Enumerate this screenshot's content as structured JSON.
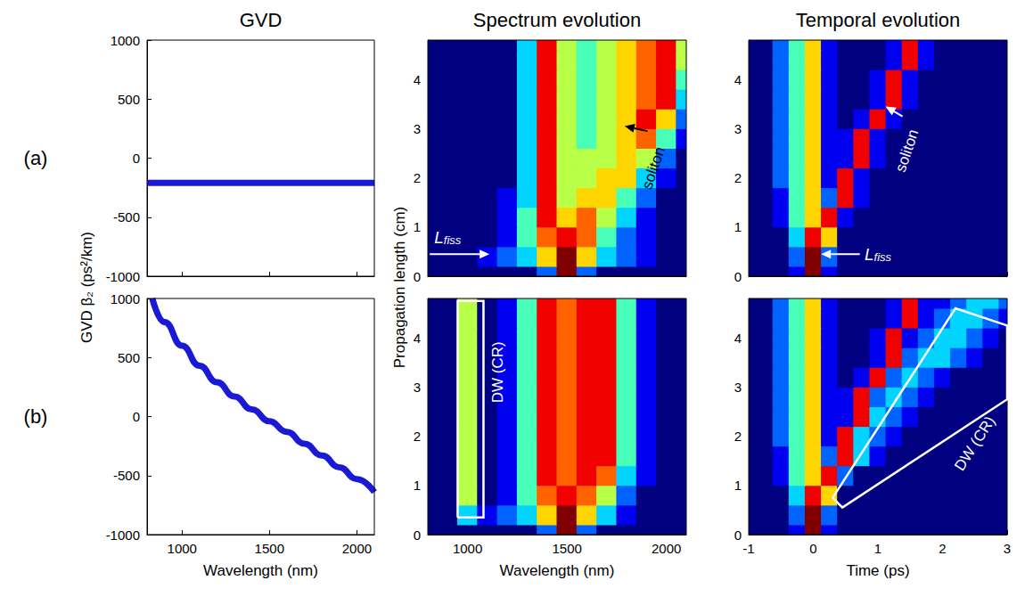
{
  "column_titles": [
    "GVD",
    "Spectrum evolution",
    "Temporal evolution"
  ],
  "row_labels": [
    "(a)",
    "(b)"
  ],
  "chart_data": [
    {
      "type": "line",
      "ylabel": "GVD β₂ (ps²/km)",
      "color": "#1a1ad6",
      "line_style": "solid",
      "x": [
        800,
        2100
      ],
      "values": [
        -210,
        -210
      ],
      "xlim": [
        800,
        2100
      ],
      "xticks": [
        1000,
        1500,
        2000
      ],
      "ylim": [
        -1000,
        1000
      ],
      "yticks": [
        -1000,
        -500,
        0,
        500,
        1000
      ],
      "tick_labels": "y"
    },
    {
      "type": "heatmap",
      "ylabel": "Propagation length (cm)",
      "x": [
        800,
        900,
        1000,
        1100,
        1200,
        1300,
        1400,
        1500,
        1600,
        1700,
        1800,
        1900,
        2000,
        2100
      ],
      "y": [
        0,
        0.4,
        0.8,
        1.2,
        1.6,
        2,
        2.4,
        2.8,
        3.2,
        3.6,
        4,
        4.4,
        4.8
      ],
      "z": [
        [
          0,
          0,
          0,
          0,
          0,
          0,
          2,
          9,
          2,
          0,
          0,
          0,
          0,
          0
        ],
        [
          0,
          0,
          0,
          1,
          2,
          3,
          6,
          9,
          6,
          3,
          2,
          1,
          0,
          0
        ],
        [
          0,
          0,
          0,
          0,
          1,
          4,
          7,
          8,
          7,
          4,
          2,
          1,
          0,
          0
        ],
        [
          0,
          0,
          0,
          0,
          1,
          4,
          8,
          6,
          7,
          5,
          3,
          1,
          0,
          0
        ],
        [
          0,
          0,
          0,
          0,
          1,
          3,
          8,
          5,
          6,
          6,
          4,
          2,
          0,
          0
        ],
        [
          0,
          0,
          0,
          0,
          0,
          3,
          8,
          5,
          5,
          6,
          6,
          3,
          1,
          0
        ],
        [
          0,
          0,
          0,
          0,
          0,
          3,
          8,
          5,
          5,
          5,
          6,
          5,
          2,
          0
        ],
        [
          0,
          0,
          0,
          0,
          0,
          3,
          8,
          5,
          4,
          5,
          6,
          7,
          4,
          1
        ],
        [
          0,
          0,
          0,
          0,
          0,
          3,
          8,
          5,
          4,
          5,
          6,
          8,
          6,
          2
        ],
        [
          0,
          0,
          0,
          0,
          0,
          3,
          8,
          5,
          4,
          5,
          6,
          7,
          8,
          3
        ],
        [
          0,
          0,
          0,
          0,
          0,
          3,
          8,
          5,
          4,
          5,
          6,
          7,
          8,
          4
        ],
        [
          0,
          0,
          0,
          0,
          0,
          3,
          8,
          5,
          4,
          5,
          6,
          7,
          8,
          5
        ],
        [
          0,
          0,
          0,
          0,
          0,
          3,
          8,
          5,
          4,
          5,
          6,
          7,
          8,
          5
        ]
      ],
      "zlim": [
        0,
        9
      ],
      "xlim": [
        800,
        2100
      ],
      "xticks": [
        1000,
        1500,
        2000
      ],
      "ylim": [
        0,
        4.8
      ],
      "yticks": [
        0,
        1,
        2,
        3,
        4
      ],
      "tick_labels": "y",
      "annotations": [
        {
          "text": "soliton",
          "x": 1935,
          "y": 2.2,
          "arrow_from": [
            1905,
            2.95
          ],
          "arrow_to": [
            1790,
            3.05
          ],
          "color": "#000000"
        },
        {
          "text": "L",
          "sub": "fiss",
          "x": 900,
          "y": 0.78,
          "arrow_from": [
            810,
            0.45
          ],
          "arrow_to": [
            1110,
            0.45
          ],
          "color": "#ffffff"
        }
      ]
    },
    {
      "type": "heatmap",
      "x": [
        -1,
        -0.75,
        -0.5,
        -0.25,
        0,
        0.25,
        0.5,
        0.75,
        1,
        1.25,
        1.5,
        1.75,
        2,
        2.25,
        2.5,
        2.75,
        3
      ],
      "y": [
        0,
        0.4,
        0.8,
        1.2,
        1.6,
        2,
        2.4,
        2.8,
        3.2,
        3.6,
        4,
        4.4,
        4.8
      ],
      "z": [
        [
          0,
          0,
          0,
          1,
          9,
          1,
          0,
          0,
          0,
          0,
          0,
          0,
          0,
          0,
          0,
          0,
          0
        ],
        [
          0,
          0,
          0,
          2,
          9,
          2,
          0,
          0,
          0,
          0,
          0,
          0,
          0,
          0,
          0,
          0,
          0
        ],
        [
          0,
          0,
          0,
          3,
          8,
          6,
          0,
          0,
          0,
          0,
          0,
          0,
          0,
          0,
          0,
          0,
          0
        ],
        [
          0,
          0,
          1,
          4,
          6,
          8,
          1,
          0,
          0,
          0,
          0,
          0,
          0,
          0,
          0,
          0,
          0
        ],
        [
          0,
          0,
          1,
          4,
          6,
          2,
          8,
          1,
          0,
          0,
          0,
          0,
          0,
          0,
          0,
          0,
          0
        ],
        [
          0,
          0,
          2,
          4,
          6,
          1,
          8,
          1,
          0,
          0,
          0,
          0,
          0,
          0,
          0,
          0,
          0
        ],
        [
          0,
          0,
          2,
          4,
          6,
          1,
          1,
          8,
          1,
          0,
          0,
          0,
          0,
          0,
          0,
          0,
          0
        ],
        [
          0,
          0,
          2,
          4,
          6,
          1,
          1,
          8,
          1,
          0,
          0,
          0,
          0,
          0,
          0,
          0,
          0
        ],
        [
          0,
          0,
          2,
          4,
          6,
          1,
          0,
          1,
          8,
          1,
          0,
          0,
          0,
          0,
          0,
          0,
          0
        ],
        [
          0,
          0,
          2,
          4,
          6,
          1,
          0,
          0,
          1,
          8,
          1,
          0,
          0,
          0,
          0,
          0,
          0
        ],
        [
          0,
          0,
          2,
          4,
          6,
          1,
          0,
          0,
          1,
          8,
          1,
          0,
          0,
          0,
          0,
          0,
          0
        ],
        [
          0,
          0,
          2,
          4,
          6,
          1,
          0,
          0,
          0,
          1,
          8,
          1,
          0,
          0,
          0,
          0,
          0
        ],
        [
          0,
          0,
          2,
          4,
          6,
          1,
          0,
          0,
          0,
          1,
          8,
          1,
          0,
          0,
          0,
          0,
          0
        ]
      ],
      "zlim": [
        0,
        9
      ],
      "xlim": [
        -1,
        3
      ],
      "xticks": [
        -1,
        0,
        1,
        2,
        3
      ],
      "ylim": [
        0,
        4.8
      ],
      "yticks": [
        0,
        1,
        2,
        3,
        4
      ],
      "tick_labels": "y",
      "annotations": [
        {
          "text": "soliton",
          "x": 1.45,
          "y": 2.55,
          "arrow_from": [
            1.38,
            3.25
          ],
          "arrow_to": [
            1.12,
            3.45
          ],
          "color": "#ffffff"
        },
        {
          "text": "L",
          "sub": "fiss",
          "x": 1.0,
          "y": 0.45,
          "arrow_from": [
            0.72,
            0.45
          ],
          "arrow_to": [
            0.12,
            0.45
          ],
          "color": "#ffffff"
        }
      ]
    },
    {
      "type": "line",
      "xlabel": "Wavelength (nm)",
      "color": "#1a1ad6",
      "line_style": "solid",
      "x": [
        830,
        900,
        1000,
        1100,
        1200,
        1300,
        1400,
        1500,
        1600,
        1700,
        1800,
        1900,
        2000,
        2100
      ],
      "values": [
        1000,
        800,
        600,
        430,
        290,
        170,
        60,
        -40,
        -130,
        -230,
        -330,
        -430,
        -530,
        -640
      ],
      "xlim": [
        800,
        2100
      ],
      "xticks": [
        1000,
        1500,
        2000
      ],
      "ylim": [
        -1000,
        1000
      ],
      "yticks": [
        -1000,
        -500,
        0,
        500,
        1000
      ],
      "tick_labels": true
    },
    {
      "type": "heatmap",
      "xlabel": "Wavelength (nm)",
      "x": [
        800,
        900,
        1000,
        1100,
        1200,
        1300,
        1400,
        1500,
        1600,
        1700,
        1800,
        1900,
        2000,
        2100
      ],
      "y": [
        0,
        0.4,
        0.8,
        1.2,
        1.6,
        2,
        2.4,
        2.8,
        3.2,
        3.6,
        4,
        4.4,
        4.8
      ],
      "z": [
        [
          0,
          0,
          0,
          0,
          0,
          0,
          2,
          9,
          2,
          0,
          0,
          0,
          0,
          0
        ],
        [
          0,
          0,
          3,
          1,
          2,
          3,
          6,
          9,
          6,
          3,
          1,
          0,
          0,
          0
        ],
        [
          0,
          0,
          5,
          0,
          1,
          4,
          7,
          8,
          7,
          5,
          2,
          0,
          0,
          0
        ],
        [
          0,
          0,
          5,
          0,
          1,
          4,
          8,
          7,
          8,
          7,
          3,
          1,
          0,
          0
        ],
        [
          0,
          0,
          5,
          0,
          1,
          4,
          8,
          7,
          8,
          8,
          4,
          1,
          0,
          0
        ],
        [
          0,
          0,
          5,
          0,
          1,
          4,
          8,
          7,
          8,
          8,
          4,
          1,
          0,
          0
        ],
        [
          0,
          0,
          5,
          0,
          1,
          4,
          8,
          7,
          8,
          8,
          4,
          1,
          0,
          0
        ],
        [
          0,
          0,
          5,
          0,
          1,
          4,
          8,
          7,
          8,
          8,
          4,
          1,
          0,
          0
        ],
        [
          0,
          0,
          5,
          0,
          1,
          4,
          8,
          7,
          8,
          8,
          4,
          1,
          0,
          0
        ],
        [
          0,
          0,
          5,
          0,
          1,
          4,
          8,
          7,
          8,
          8,
          4,
          1,
          0,
          0
        ],
        [
          0,
          0,
          5,
          0,
          1,
          4,
          8,
          7,
          8,
          8,
          4,
          1,
          0,
          0
        ],
        [
          0,
          0,
          5,
          0,
          1,
          4,
          8,
          7,
          8,
          8,
          4,
          1,
          0,
          0
        ],
        [
          0,
          0,
          5,
          0,
          1,
          4,
          8,
          7,
          8,
          8,
          4,
          1,
          0,
          0
        ]
      ],
      "zlim": [
        0,
        9
      ],
      "xlim": [
        800,
        2100
      ],
      "xticks": [
        1000,
        1500,
        2000
      ],
      "ylim": [
        0,
        4.8
      ],
      "yticks": [
        0,
        1,
        2,
        3,
        4
      ],
      "tick_labels": true,
      "annotations": [
        {
          "text": "DW (CR)",
          "x": 1150,
          "y": 3.3,
          "box": [
            [
              950,
              0.35
            ],
            [
              950,
              4.75
            ],
            [
              1080,
              4.75
            ],
            [
              1080,
              0.35
            ],
            [
              950,
              0.35
            ]
          ],
          "color": "#ffffff"
        }
      ]
    },
    {
      "type": "heatmap",
      "xlabel": "Time (ps)",
      "x": [
        -1,
        -0.75,
        -0.5,
        -0.25,
        0,
        0.25,
        0.5,
        0.75,
        1,
        1.25,
        1.5,
        1.75,
        2,
        2.25,
        2.5,
        2.75,
        3
      ],
      "y": [
        0,
        0.4,
        0.8,
        1.2,
        1.6,
        2,
        2.4,
        2.8,
        3.2,
        3.6,
        4,
        4.4,
        4.8
      ],
      "z": [
        [
          0,
          0,
          0,
          1,
          9,
          1,
          0,
          0,
          0,
          0,
          0,
          0,
          0,
          0,
          0,
          0,
          0
        ],
        [
          0,
          0,
          0,
          2,
          9,
          2,
          0,
          0,
          0,
          0,
          0,
          0,
          0,
          0,
          0,
          0,
          0
        ],
        [
          0,
          0,
          0,
          3,
          8,
          6,
          0,
          0,
          0,
          0,
          0,
          0,
          0,
          0,
          0,
          0,
          0
        ],
        [
          0,
          0,
          1,
          4,
          6,
          8,
          2,
          0,
          0,
          0,
          0,
          0,
          0,
          0,
          0,
          0,
          0
        ],
        [
          0,
          0,
          1,
          4,
          6,
          2,
          8,
          3,
          1,
          0,
          0,
          0,
          0,
          0,
          0,
          0,
          0
        ],
        [
          0,
          0,
          2,
          4,
          6,
          1,
          8,
          3,
          2,
          1,
          0,
          0,
          0,
          0,
          0,
          0,
          0
        ],
        [
          0,
          0,
          2,
          4,
          6,
          1,
          1,
          8,
          3,
          2,
          1,
          0,
          0,
          0,
          0,
          0,
          0
        ],
        [
          0,
          0,
          2,
          4,
          6,
          1,
          1,
          8,
          2,
          3,
          2,
          1,
          0,
          0,
          0,
          0,
          0
        ],
        [
          0,
          0,
          2,
          4,
          6,
          1,
          0,
          1,
          8,
          2,
          3,
          2,
          1,
          0,
          0,
          0,
          0
        ],
        [
          0,
          0,
          2,
          4,
          6,
          1,
          0,
          0,
          1,
          8,
          2,
          3,
          3,
          2,
          1,
          0,
          0
        ],
        [
          0,
          0,
          2,
          4,
          6,
          1,
          0,
          0,
          1,
          8,
          1,
          2,
          3,
          3,
          2,
          1,
          0
        ],
        [
          0,
          0,
          2,
          4,
          6,
          1,
          0,
          0,
          0,
          1,
          8,
          1,
          2,
          3,
          3,
          2,
          1
        ],
        [
          0,
          0,
          2,
          4,
          6,
          1,
          0,
          0,
          0,
          1,
          8,
          1,
          1,
          2,
          3,
          3,
          2
        ]
      ],
      "zlim": [
        0,
        9
      ],
      "xlim": [
        -1,
        3
      ],
      "xticks": [
        -1,
        0,
        1,
        2,
        3
      ],
      "ylim": [
        0,
        4.8
      ],
      "yticks": [
        0,
        1,
        2,
        3,
        4
      ],
      "tick_labels": true,
      "annotations": [
        {
          "text": "DW (CR)",
          "x": 2.5,
          "y": 1.85,
          "box": [
            [
              0.3,
              0.75
            ],
            [
              2.2,
              4.6
            ],
            [
              3,
              4.25
            ],
            [
              3,
              2.75
            ],
            [
              0.45,
              0.55
            ],
            [
              0.3,
              0.75
            ]
          ],
          "color": "#ffffff"
        }
      ]
    }
  ]
}
